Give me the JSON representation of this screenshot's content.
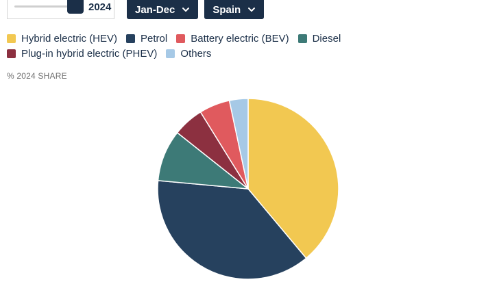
{
  "controls": {
    "year_value": "2024",
    "period_label": "Jan-Dec",
    "country_label": "Spain"
  },
  "legend": [
    {
      "label": "Hybrid electric (HEV)",
      "color": "#f2c851"
    },
    {
      "label": "Petrol",
      "color": "#26415e"
    },
    {
      "label": "Battery electric (BEV)",
      "color": "#e05a5e"
    },
    {
      "label": "Diesel",
      "color": "#3d7a77"
    },
    {
      "label": "Plug-in hybrid electric (PHEV)",
      "color": "#8c3040"
    },
    {
      "label": "Others",
      "color": "#a6c9e6"
    }
  ],
  "subtitle": "% 2024 SHARE",
  "chart_data": {
    "type": "pie",
    "title": "",
    "categories": [
      "Hybrid electric (HEV)",
      "Petrol",
      "Battery electric (BEV)",
      "Diesel",
      "Plug-in hybrid electric (PHEV)",
      "Others"
    ],
    "order_clockwise_from_top": [
      "Hybrid electric (HEV)",
      "Petrol",
      "Diesel",
      "Plug-in hybrid electric (PHEV)",
      "Battery electric (BEV)",
      "Others"
    ],
    "values": [
      39.7,
      38.3,
      5.6,
      9.4,
      5.6,
      3.4
    ],
    "colors": [
      "#f2c851",
      "#26415e",
      "#e05a5e",
      "#3d7a77",
      "#8c3040",
      "#a6c9e6"
    ],
    "unit": "%"
  }
}
